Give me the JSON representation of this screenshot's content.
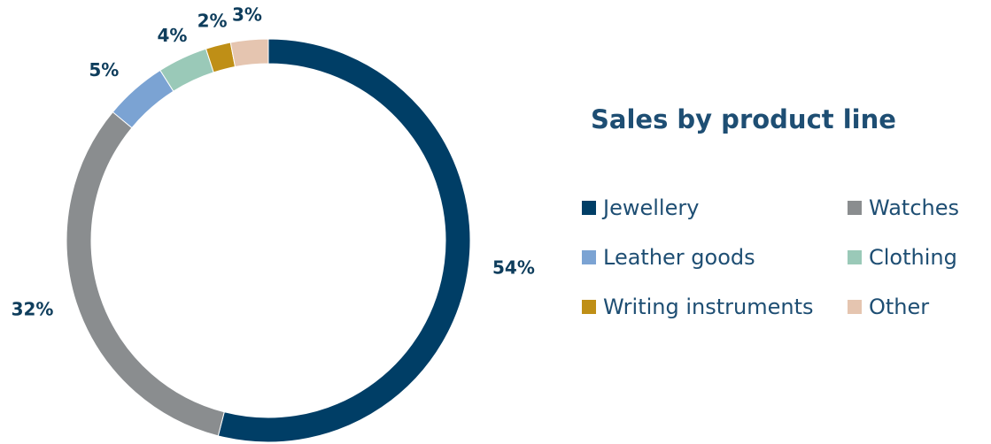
{
  "colors": {
    "label_text": "#0e3d5c",
    "title_text": "#1e4e73"
  },
  "chart_data": {
    "type": "pie",
    "variant": "donut",
    "title": "Sales by product line",
    "start_angle_deg": 0,
    "direction": "clockwise",
    "legend_position": "right",
    "slices": [
      {
        "label": "Jewellery",
        "value": 54,
        "display": "54%",
        "color": "#003e66"
      },
      {
        "label": "Watches",
        "value": 32,
        "display": "32%",
        "color": "#8a8d8f"
      },
      {
        "label": "Leather goods",
        "value": 5,
        "display": "5%",
        "color": "#7ba3d3"
      },
      {
        "label": "Clothing",
        "value": 4,
        "display": "4%",
        "color": "#9ac9b8"
      },
      {
        "label": "Writing instruments",
        "value": 2,
        "display": "2%",
        "color": "#bf8f16"
      },
      {
        "label": "Other",
        "value": 3,
        "display": "3%",
        "color": "#e5c5b0"
      }
    ]
  }
}
